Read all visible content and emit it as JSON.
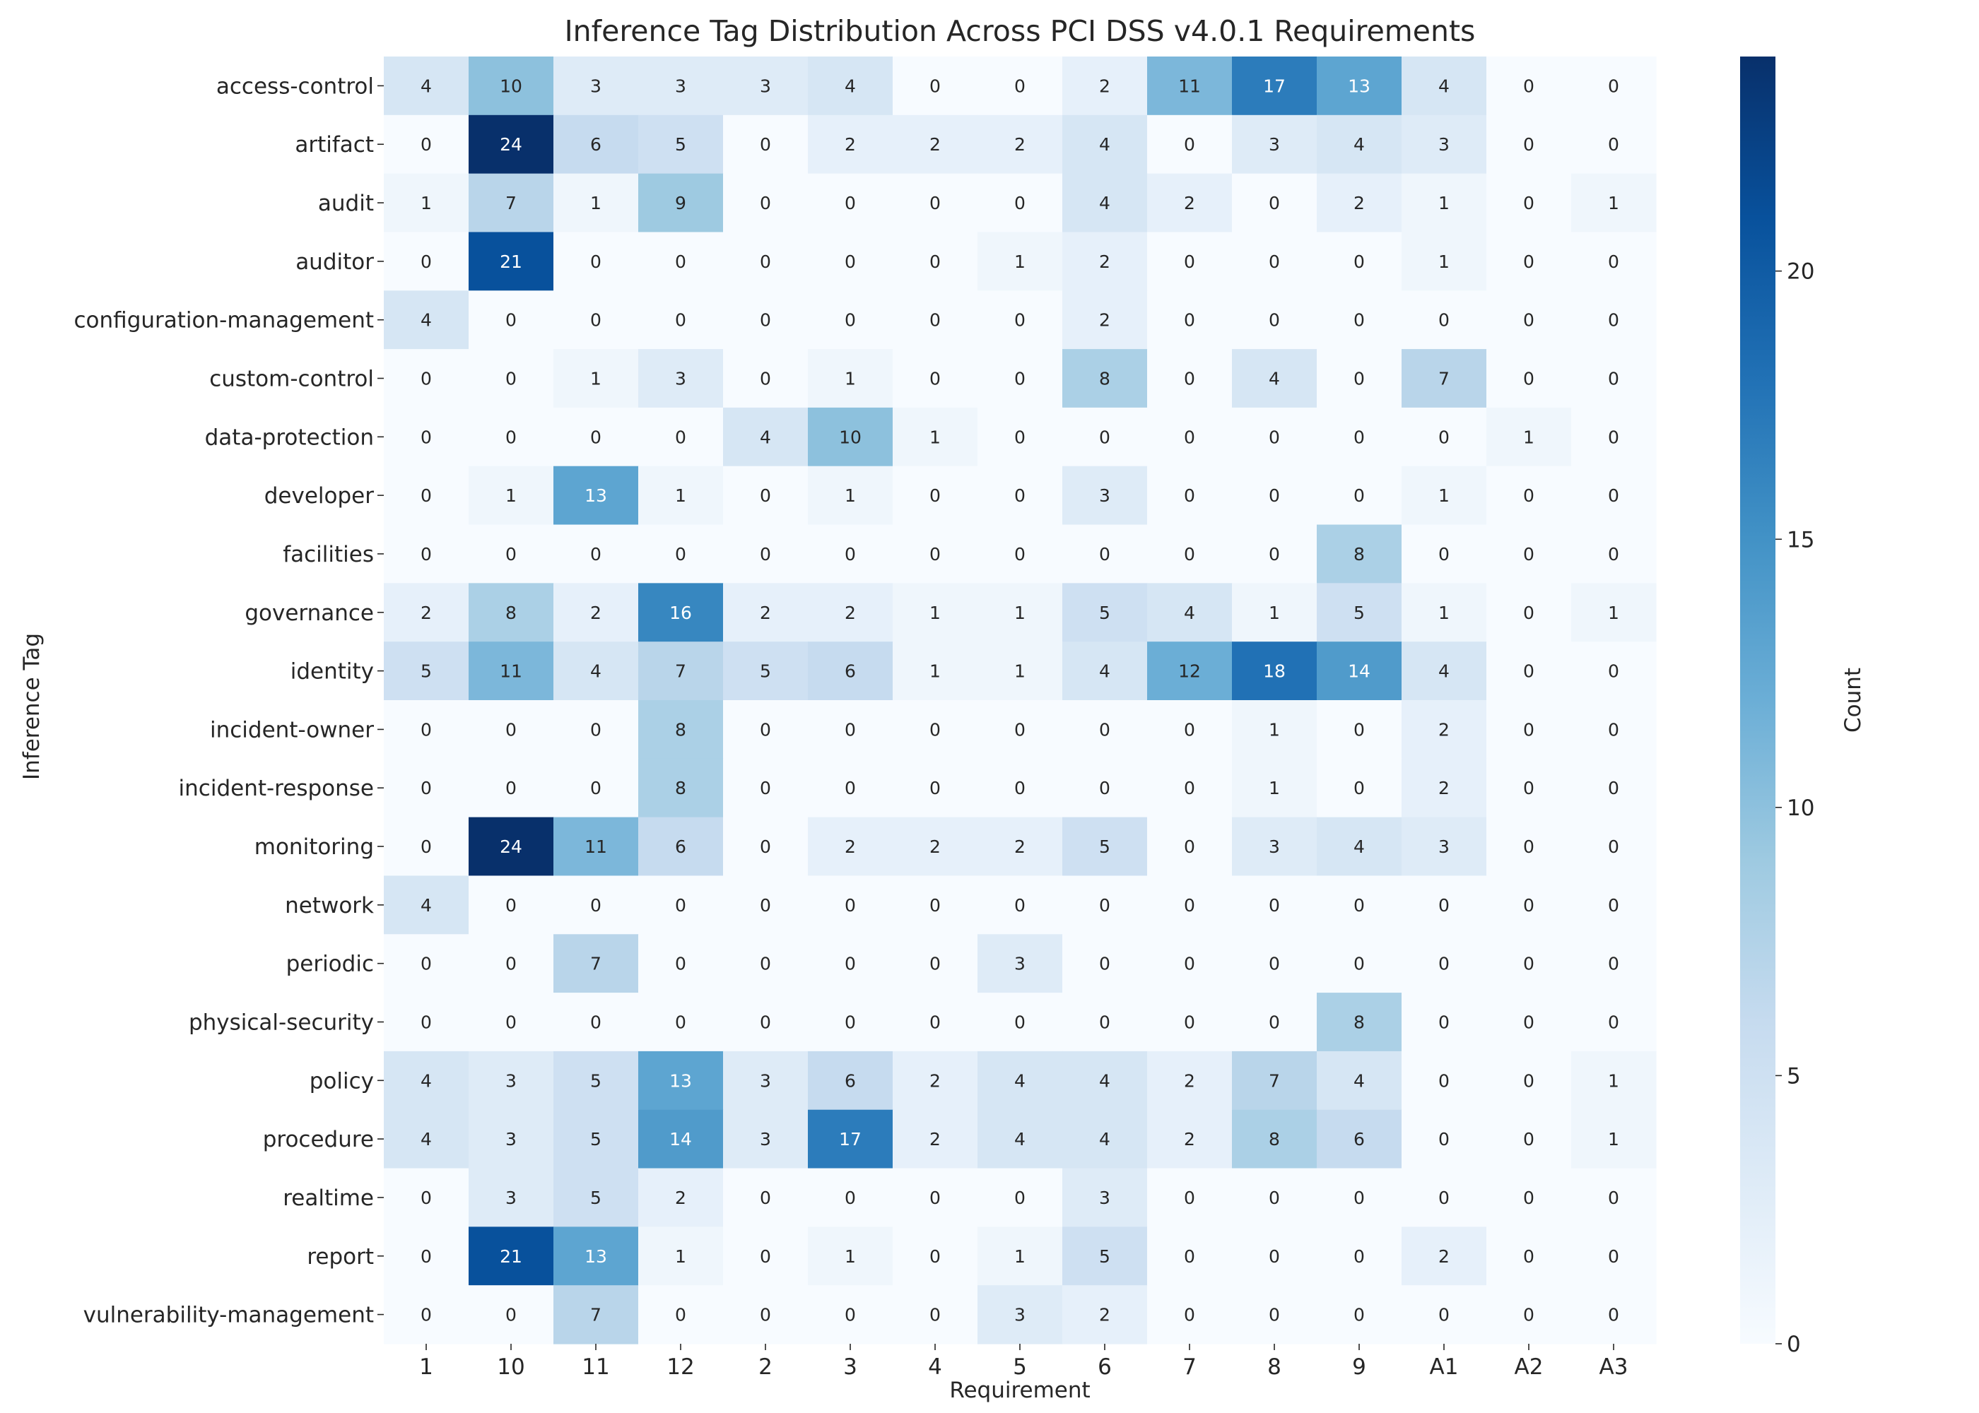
{
  "chart_data": {
    "type": "heatmap",
    "title": "Inference Tag Distribution Across PCI DSS v4.0.1 Requirements",
    "xlabel": "Requirement",
    "ylabel": "Inference Tag",
    "colorbar_label": "Count",
    "colormap": "Blues",
    "vmin": 0,
    "vmax": 24,
    "colorbar_ticks": [
      0,
      5,
      10,
      15,
      20
    ],
    "x": [
      "1",
      "10",
      "11",
      "12",
      "2",
      "3",
      "4",
      "5",
      "6",
      "7",
      "8",
      "9",
      "A1",
      "A2",
      "A3"
    ],
    "y": [
      "access-control",
      "artifact",
      "audit",
      "auditor",
      "configuration-management",
      "custom-control",
      "data-protection",
      "developer",
      "facilities",
      "governance",
      "identity",
      "incident-owner",
      "incident-response",
      "monitoring",
      "network",
      "periodic",
      "physical-security",
      "policy",
      "procedure",
      "realtime",
      "report",
      "vulnerability-management"
    ],
    "values": [
      [
        4,
        10,
        3,
        3,
        3,
        4,
        0,
        0,
        2,
        11,
        17,
        13,
        4,
        0,
        0
      ],
      [
        0,
        24,
        6,
        5,
        0,
        2,
        2,
        2,
        4,
        0,
        3,
        4,
        3,
        0,
        0
      ],
      [
        1,
        7,
        1,
        9,
        0,
        0,
        0,
        0,
        4,
        2,
        0,
        2,
        1,
        0,
        1
      ],
      [
        0,
        21,
        0,
        0,
        0,
        0,
        0,
        1,
        2,
        0,
        0,
        0,
        1,
        0,
        0
      ],
      [
        4,
        0,
        0,
        0,
        0,
        0,
        0,
        0,
        2,
        0,
        0,
        0,
        0,
        0,
        0
      ],
      [
        0,
        0,
        1,
        3,
        0,
        1,
        0,
        0,
        8,
        0,
        4,
        0,
        7,
        0,
        0
      ],
      [
        0,
        0,
        0,
        0,
        4,
        10,
        1,
        0,
        0,
        0,
        0,
        0,
        0,
        1,
        0
      ],
      [
        0,
        1,
        13,
        1,
        0,
        1,
        0,
        0,
        3,
        0,
        0,
        0,
        1,
        0,
        0
      ],
      [
        0,
        0,
        0,
        0,
        0,
        0,
        0,
        0,
        0,
        0,
        0,
        8,
        0,
        0,
        0
      ],
      [
        2,
        8,
        2,
        16,
        2,
        2,
        1,
        1,
        5,
        4,
        1,
        5,
        1,
        0,
        1
      ],
      [
        5,
        11,
        4,
        7,
        5,
        6,
        1,
        1,
        4,
        12,
        18,
        14,
        4,
        0,
        0
      ],
      [
        0,
        0,
        0,
        8,
        0,
        0,
        0,
        0,
        0,
        0,
        1,
        0,
        2,
        0,
        0
      ],
      [
        0,
        0,
        0,
        8,
        0,
        0,
        0,
        0,
        0,
        0,
        1,
        0,
        2,
        0,
        0
      ],
      [
        0,
        24,
        11,
        6,
        0,
        2,
        2,
        2,
        5,
        0,
        3,
        4,
        3,
        0,
        0
      ],
      [
        4,
        0,
        0,
        0,
        0,
        0,
        0,
        0,
        0,
        0,
        0,
        0,
        0,
        0,
        0
      ],
      [
        0,
        0,
        7,
        0,
        0,
        0,
        0,
        3,
        0,
        0,
        0,
        0,
        0,
        0,
        0
      ],
      [
        0,
        0,
        0,
        0,
        0,
        0,
        0,
        0,
        0,
        0,
        0,
        8,
        0,
        0,
        0
      ],
      [
        4,
        3,
        5,
        13,
        3,
        6,
        2,
        4,
        4,
        2,
        7,
        4,
        0,
        0,
        1
      ],
      [
        4,
        3,
        5,
        14,
        3,
        17,
        2,
        4,
        4,
        2,
        8,
        6,
        0,
        0,
        1
      ],
      [
        0,
        3,
        5,
        2,
        0,
        0,
        0,
        0,
        3,
        0,
        0,
        0,
        0,
        0,
        0
      ],
      [
        0,
        21,
        13,
        1,
        0,
        1,
        0,
        1,
        5,
        0,
        0,
        0,
        2,
        0,
        0
      ],
      [
        0,
        0,
        7,
        0,
        0,
        0,
        0,
        3,
        2,
        0,
        0,
        0,
        0,
        0,
        0
      ]
    ]
  }
}
